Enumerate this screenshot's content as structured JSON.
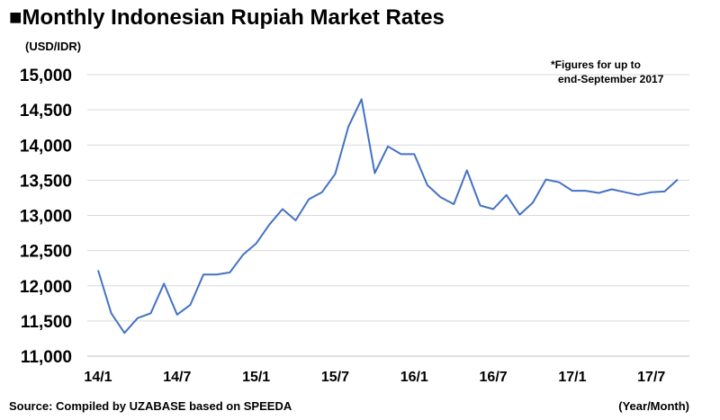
{
  "header": {
    "title": "■Monthly Indonesian Rupiah Market Rates",
    "unit": "(USD/IDR)"
  },
  "note": {
    "line1": "*Figures for up to",
    "line2": "end-September 2017"
  },
  "footer": {
    "source": "Source: Compiled by UZABASE based on SPEEDA",
    "x_unit": "(Year/Month)"
  },
  "chart_data": {
    "type": "line",
    "title": "Monthly Indonesian Rupiah Market Rates",
    "ylabel": "(USD/IDR)",
    "xlabel": "(Year/Month)",
    "ylim": [
      11000,
      15000
    ],
    "y_ticks": [
      "15,000",
      "14,500",
      "14,000",
      "13,500",
      "13,000",
      "12,500",
      "12,000",
      "11,500",
      "11,000"
    ],
    "y_tick_values": [
      15000,
      14500,
      14000,
      13500,
      13000,
      12500,
      12000,
      11500,
      11000
    ],
    "x_ticks": [
      "14/1",
      "14/7",
      "15/1",
      "15/7",
      "16/1",
      "16/7",
      "17/1",
      "17/7"
    ],
    "x_tick_indices": [
      0,
      6,
      12,
      18,
      24,
      30,
      36,
      42
    ],
    "grid": "horizontal",
    "line_color": "#4472c4",
    "series": [
      {
        "values": [
          12220,
          11610,
          11330,
          11540,
          11610,
          12030,
          11590,
          11730,
          12160,
          12160,
          12190,
          12440,
          12600,
          12870,
          13090,
          12930,
          13230,
          13330,
          13590,
          14260,
          14650,
          13600,
          13980,
          13870,
          13870,
          13430,
          13260,
          13160,
          13640,
          13140,
          13090,
          13290,
          13010,
          13180,
          13510,
          13470,
          13350,
          13350,
          13320,
          13370,
          13330,
          13290,
          13330,
          13340,
          13510
        ]
      }
    ]
  }
}
